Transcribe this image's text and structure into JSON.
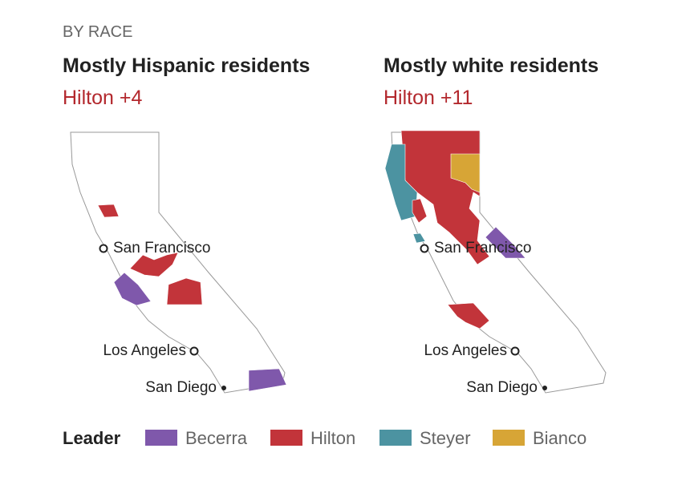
{
  "section_label": "BY RACE",
  "maps": [
    {
      "title": "Mostly Hispanic residents",
      "subtitle": "Hilton +4",
      "cities": [
        "San Francisco",
        "Los Angeles",
        "San Diego"
      ]
    },
    {
      "title": "Mostly white residents",
      "subtitle": "Hilton +11",
      "cities": [
        "San Francisco",
        "Los Angeles",
        "San Diego"
      ]
    }
  ],
  "legend": {
    "title": "Leader",
    "items": [
      {
        "name": "Becerra",
        "color": "#7f58ab"
      },
      {
        "name": "Hilton",
        "color": "#c2343a"
      },
      {
        "name": "Steyer",
        "color": "#4c93a1"
      },
      {
        "name": "Bianco",
        "color": "#d7a536"
      }
    ]
  }
}
